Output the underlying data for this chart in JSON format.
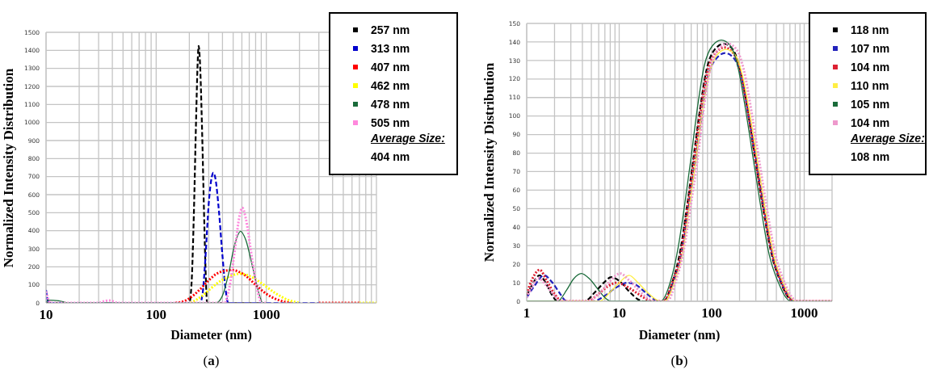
{
  "chart_data": [
    {
      "type": "line",
      "xlabel": "Diameter (nm)",
      "ylabel": "Normalized Intensity Distribution",
      "log": "x",
      "grid": true,
      "legend": "top right",
      "annotations": [
        "Average Size:",
        "404 nm",
        "(a)"
      ],
      "xlim": [
        10,
        10000
      ],
      "xticks": [
        10,
        {
          "value": 20,
          "label": null
        },
        {
          "value": 30,
          "label": null
        },
        {
          "value": 40,
          "label": null
        },
        {
          "value": 50,
          "label": null
        },
        {
          "value": 60,
          "label": null
        },
        {
          "value": 70,
          "label": null
        },
        {
          "value": 80,
          "label": null
        },
        {
          "value": 90,
          "label": null
        },
        100,
        {
          "value": 200,
          "label": null
        },
        {
          "value": 300,
          "label": null
        },
        {
          "value": 400,
          "label": null
        },
        {
          "value": 500,
          "label": null
        },
        {
          "value": 600,
          "label": null
        },
        {
          "value": 700,
          "label": null
        },
        {
          "value": 800,
          "label": null
        },
        {
          "value": 900,
          "label": null
        },
        1000,
        {
          "value": 2000,
          "label": null
        },
        {
          "value": 3000,
          "label": null
        },
        {
          "value": 4000,
          "label": null
        },
        {
          "value": 5000,
          "label": null
        },
        {
          "value": 6000,
          "label": null
        },
        {
          "value": 7000,
          "label": null
        },
        {
          "value": 8000,
          "label": null
        },
        {
          "value": 9000,
          "label": null
        },
        {
          "value": 10000,
          "label": null
        }
      ],
      "ylim": [
        0,
        1500
      ],
      "yticks": [
        0,
        100,
        200,
        300,
        400,
        500,
        600,
        700,
        800,
        900,
        1000,
        1100,
        1200,
        1300,
        1400,
        1500
      ],
      "series": [
        {
          "name": "257 nm",
          "color": "#000000",
          "line_style": "dashed",
          "x": [
            10,
            200,
            210,
            220,
            230,
            238,
            243,
            250,
            260,
            272,
            282,
            290,
            1000
          ],
          "values": [
            0,
            0,
            120,
            500,
            1000,
            1330,
            1425,
            1330,
            1000,
            500,
            150,
            0,
            0
          ]
        },
        {
          "name": "313 nm",
          "color": "#0000cc",
          "line_style": "dashed",
          "x": [
            10,
            10.4,
            11,
            250,
            265,
            280,
            300,
            320,
            330,
            345,
            370,
            400,
            430,
            450,
            3000
          ],
          "values": [
            72,
            10,
            0,
            0,
            60,
            250,
            550,
            700,
            722,
            690,
            520,
            260,
            60,
            0,
            0
          ]
        },
        {
          "name": "407 nm",
          "color": "#ff0000",
          "line_style": "dotted",
          "x": [
            150,
            170,
            200,
            250,
            300,
            350,
            420,
            484,
            550,
            650,
            800,
            1000,
            1300,
            1700,
            2000,
            3000,
            7000
          ],
          "values": [
            0,
            5,
            25,
            75,
            125,
            160,
            178,
            182,
            175,
            150,
            100,
            50,
            15,
            0,
            null,
            0,
            0
          ]
        },
        {
          "name": "462 nm",
          "color": "#ffff00",
          "line_style": "dotted",
          "x": [
            205,
            250,
            300,
            380,
            480,
            571,
            700,
            900,
            1200,
            1600,
            2000,
            3000,
            7000,
            10000
          ],
          "values": [
            0,
            30,
            70,
            120,
            150,
            162,
            150,
            110,
            55,
            15,
            0,
            null,
            0,
            0
          ]
        },
        {
          "name": "478 nm",
          "color": "#1a6b3a",
          "line_style": "solid",
          "x": [
            10,
            10.5,
            13,
            16,
            350,
            400,
            450,
            520,
            584,
            650,
            750,
            850,
            930,
            1000
          ],
          "values": [
            5,
            15,
            12,
            0,
            0,
            40,
            150,
            330,
            397,
            350,
            200,
            60,
            0,
            0
          ]
        },
        {
          "name": "505 nm",
          "color": "#ff88dd",
          "line_style": "dotted",
          "x": [
            10,
            10.5,
            11,
            30,
            33,
            37,
            41,
            45,
            418,
            460,
            520,
            570,
            605,
            650,
            720,
            800,
            860,
            910,
            1000
          ],
          "values": [
            63,
            20,
            0,
            0,
            8,
            13,
            8,
            0,
            0,
            80,
            300,
            480,
            527,
            470,
            300,
            120,
            30,
            0,
            0
          ]
        }
      ]
    },
    {
      "type": "line",
      "xlabel": "Diameter (nm)",
      "ylabel": "Normalized Intensity Distribution",
      "log": "x",
      "grid": true,
      "legend": "top right",
      "annotations": [
        "Average Size:",
        "108 nm",
        "(b)"
      ],
      "xlim": [
        1,
        2000
      ],
      "xticks": [
        1,
        {
          "value": 2,
          "label": null
        },
        {
          "value": 3,
          "label": null
        },
        {
          "value": 4,
          "label": null
        },
        {
          "value": 5,
          "label": null
        },
        {
          "value": 6,
          "label": null
        },
        {
          "value": 7,
          "label": null
        },
        {
          "value": 8,
          "label": null
        },
        {
          "value": 9,
          "label": null
        },
        10,
        {
          "value": 20,
          "label": null
        },
        {
          "value": 30,
          "label": null
        },
        {
          "value": 40,
          "label": null
        },
        {
          "value": 50,
          "label": null
        },
        {
          "value": 60,
          "label": null
        },
        {
          "value": 70,
          "label": null
        },
        {
          "value": 80,
          "label": null
        },
        {
          "value": 90,
          "label": null
        },
        100,
        {
          "value": 200,
          "label": null
        },
        {
          "value": 300,
          "label": null
        },
        {
          "value": 400,
          "label": null
        },
        {
          "value": 500,
          "label": null
        },
        {
          "value": 600,
          "label": null
        },
        {
          "value": 700,
          "label": null
        },
        {
          "value": 800,
          "label": null
        },
        {
          "value": 900,
          "label": null
        },
        1000,
        {
          "value": 2000,
          "label": null
        }
      ],
      "ylim": [
        0,
        150
      ],
      "yticks": [
        0,
        10,
        20,
        30,
        40,
        50,
        60,
        70,
        80,
        90,
        100,
        110,
        120,
        130,
        140,
        150
      ],
      "series": [
        {
          "name": "118 nm",
          "color": "#000000",
          "line_style": "dashed",
          "x": [
            1,
            1.15,
            1.38,
            1.6,
            1.9,
            2.15,
            4.2,
            5.5,
            6.8,
            8.2,
            10,
            13,
            16,
            18.5,
            30,
            38,
            46,
            54,
            63,
            73,
            88,
            108,
            135,
            169,
            203,
            250,
            297,
            360,
            446,
            560,
            675,
            756,
            2000
          ],
          "values": [
            3,
            9,
            14,
            10,
            3,
            0,
            0,
            5,
            10,
            13,
            11,
            5,
            1,
            0,
            0,
            11,
            28,
            51,
            76,
            100,
            125,
            136,
            139,
            136,
            125,
            100,
            76,
            50,
            25,
            10,
            2,
            0,
            0
          ]
        },
        {
          "name": "107 nm",
          "color": "#2222bb",
          "line_style": "dashed",
          "x": [
            1,
            1.2,
            1.54,
            1.9,
            2.3,
            2.7,
            5.2,
            7,
            9,
            12.3,
            15,
            20,
            24,
            27,
            31,
            39,
            48,
            56,
            66,
            76,
            91,
            112,
            140,
            175,
            210,
            259,
            308,
            374,
            462,
            581,
            700,
            784,
            2000
          ],
          "values": [
            2,
            8,
            14,
            10,
            4,
            0,
            0,
            3,
            7,
            10,
            9,
            4,
            1,
            0,
            0,
            11,
            27,
            50,
            74,
            96,
            121,
            131,
            134,
            131,
            121,
            96,
            74,
            48,
            24,
            9,
            2,
            0,
            0
          ]
        },
        {
          "name": "104 nm",
          "color": "#dd2233",
          "line_style": "dotted",
          "x": [
            1,
            1.15,
            1.38,
            1.65,
            2,
            2.4,
            4.5,
            6,
            7.5,
            9.5,
            12,
            16,
            20,
            23,
            30,
            38,
            47,
            55,
            64,
            74,
            89,
            110,
            137,
            171,
            206,
            253,
            301,
            366,
            452,
            569,
            685,
            767,
            2000
          ],
          "values": [
            4,
            12,
            17,
            11,
            4,
            0,
            0,
            4,
            8,
            10,
            8,
            4,
            1,
            0,
            0,
            11,
            27,
            51,
            75,
            99,
            123,
            134,
            137,
            134,
            123,
            99,
            75,
            49,
            25,
            10,
            2,
            0,
            0
          ]
        },
        {
          "name": "110 nm",
          "color": "#ffee44",
          "line_style": "solid",
          "x": [
            1,
            6.1,
            8,
            10,
            12.8,
            16,
            20,
            25,
            29,
            31,
            40,
            49,
            57,
            67,
            77,
            93,
            114,
            143,
            179,
            215,
            265,
            315,
            382,
            472,
            593,
            715,
            801,
            2000
          ],
          "values": [
            0,
            0,
            5,
            10,
            14,
            10,
            5,
            1,
            0,
            0,
            11,
            27,
            50,
            75,
            98,
            122,
            133,
            136,
            133,
            122,
            98,
            75,
            49,
            24,
            10,
            2,
            0,
            0
          ]
        },
        {
          "name": "105 nm",
          "color": "#1a6b3a",
          "line_style": "solid",
          "x": [
            1,
            2.15,
            2.7,
            3.2,
            3.9,
            4.8,
            6,
            7,
            8.2,
            28,
            36,
            43,
            51,
            60,
            69,
            83,
            102,
            127,
            159,
            191,
            235,
            279,
            339,
            419,
            527,
            635,
            711,
            2000
          ],
          "values": [
            0,
            0,
            6,
            12,
            15,
            12,
            6,
            2,
            0,
            0,
            11,
            28,
            52,
            78,
            102,
            127,
            138,
            141,
            138,
            127,
            102,
            78,
            51,
            25,
            10,
            2,
            0,
            0
          ]
        },
        {
          "name": "104 nm",
          "color": "#ee99cc",
          "line_style": "dotted",
          "x": [
            1,
            1.15,
            1.33,
            1.6,
            2,
            2.3,
            4.5,
            6,
            8,
            10.2,
            13,
            17,
            21,
            25,
            33,
            41,
            50,
            59,
            70,
            80,
            96,
            118,
            148,
            185,
            222,
            274,
            326,
            395,
            488,
            614,
            740,
            829,
            2000
          ],
          "values": [
            2,
            8,
            12.5,
            9,
            3,
            0,
            0,
            4,
            11,
            15,
            11,
            5,
            1,
            0,
            0,
            11,
            28,
            51,
            76,
            100,
            125,
            136,
            139,
            136,
            125,
            100,
            76,
            50,
            25,
            10,
            2,
            0,
            0
          ]
        }
      ]
    }
  ]
}
